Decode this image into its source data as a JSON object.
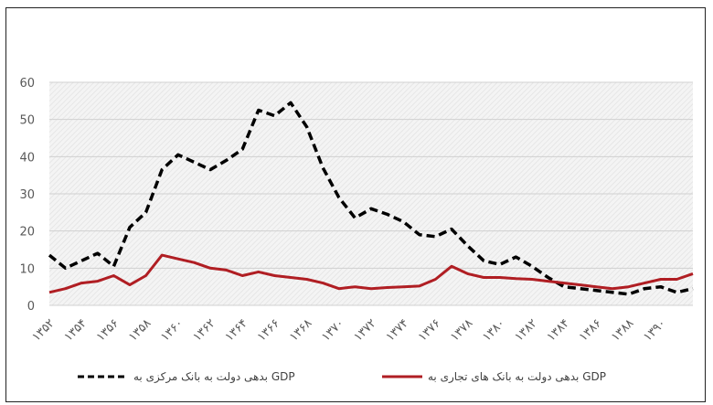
{
  "chart_data": {
    "type": "line",
    "title": "",
    "xlabel": "",
    "ylabel": "",
    "ylim": [
      0,
      60
    ],
    "y_ticks": [
      0,
      10,
      20,
      30,
      40,
      50,
      60
    ],
    "x_start": 1352,
    "x_end": 1392,
    "x_tick_labels": [
      "۱۳۵۲",
      "۱۳۵۴",
      "۱۳۵۶",
      "۱۳۵۸",
      "۱۳۶۰",
      "۱۳۶۲",
      "۱۳۶۴",
      "۱۳۶۶",
      "۱۳۶۸",
      "۱۳۷۰",
      "۱۳۷۲",
      "۱۳۷۴",
      "۱۳۷۶",
      "۱۳۷۸",
      "۱۳۸۰",
      "۱۳۸۲",
      "۱۳۸۴",
      "۱۳۸۶",
      "۱۳۸۸",
      "۱۳۹۰"
    ],
    "grid": true,
    "legend_position": "bottom",
    "series": [
      {
        "name": "بدهی دولت به بانک مرکزی به GDP",
        "color": "#000000",
        "style": "dashed",
        "values": [
          13.5,
          10,
          12,
          14,
          10.5,
          21,
          25,
          36.5,
          40.5,
          38.5,
          36.5,
          39,
          42,
          52.5,
          51,
          54.5,
          48,
          37,
          29,
          23.5,
          26,
          24.5,
          22.5,
          19,
          18.5,
          20.5,
          16,
          12,
          11,
          13,
          10.5,
          7.5,
          5,
          4.5,
          4,
          3.5,
          3,
          4.5,
          5,
          3.5,
          4.5
        ]
      },
      {
        "name": "بدهی دولت به بانک های تجاری به GDP",
        "color": "#b01e23",
        "style": "solid",
        "values": [
          3.5,
          4.5,
          6,
          6.5,
          8,
          5.5,
          8,
          13.5,
          12.5,
          11.5,
          10,
          9.5,
          8,
          9,
          8,
          7.5,
          7,
          6,
          4.5,
          5,
          4.5,
          4.8,
          5,
          5.2,
          7,
          10.5,
          8.5,
          7.5,
          7.5,
          7.2,
          7,
          6.5,
          6,
          5.5,
          5,
          4.5,
          5,
          6,
          7,
          7,
          8.5
        ]
      }
    ]
  }
}
